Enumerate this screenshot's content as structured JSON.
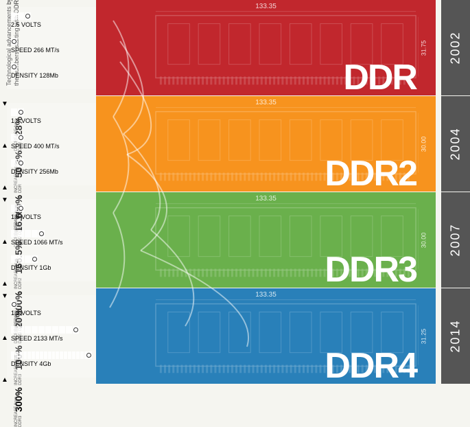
{
  "title": "Technological advancements by the numbers, starting with DDR",
  "generations": [
    {
      "id": "ddr",
      "label": "DDR",
      "year": "2002",
      "color": "#c1272d",
      "width_mm": "133.35",
      "height_mm": "31.75",
      "volts": {
        "segments": 3,
        "label": "2.5 VOLTS"
      },
      "speed": {
        "segments": 1,
        "label": "SPEED 266 MT/s"
      },
      "density": {
        "segments": 1,
        "label": "DENSITY 128Mb"
      },
      "changes": null
    },
    {
      "id": "ddr2",
      "label": "DDR2",
      "year": "2004",
      "color": "#f7931e",
      "width_mm": "133.35",
      "height_mm": "30.00",
      "volts": {
        "segments": 2,
        "label": "1.8 VOLTS"
      },
      "speed": {
        "segments": 2,
        "label": "SPEED 400 MT/s"
      },
      "density": {
        "segments": 2,
        "label": "DENSITY 256Mb"
      },
      "changes": [
        {
          "pct": "28%",
          "dir": "down",
          "desc": "DECREASE from DDR"
        },
        {
          "pct": "50.3%",
          "dir": "up",
          "desc": "INCREASE from DDR"
        },
        {
          "pct": "100%",
          "dir": "up",
          "desc": "INCREASE from DDR"
        }
      ]
    },
    {
      "id": "ddr3",
      "label": "DDR3",
      "year": "2007",
      "color": "#6ab04c",
      "width_mm": "133.35",
      "height_mm": "30.00",
      "volts": {
        "segments": 2,
        "label": "1.5 VOLTS"
      },
      "speed": {
        "segments": 5,
        "label": "SPEED 1066 MT/s"
      },
      "density": {
        "segments": 4,
        "label": "DENSITY 1Gb"
      },
      "changes": [
        {
          "pct": "16.6%",
          "dir": "down",
          "desc": "DECREASE from DDR2"
        },
        {
          "pct": "166.5%",
          "dir": "up",
          "desc": "INCREASE from DDR2"
        },
        {
          "pct": "300%",
          "dir": "up",
          "desc": "INCREASE from DDR2"
        }
      ]
    },
    {
      "id": "ddr4",
      "label": "DDR4",
      "year": "2014",
      "color": "#2980b9",
      "width_mm": "133.35",
      "height_mm": "31.25",
      "volts": {
        "segments": 1,
        "label": "1.2 VOLTS"
      },
      "speed": {
        "segments": 10,
        "label": "SPEED 2133 MT/s"
      },
      "density": {
        "segments": 20,
        "label": "DENSITY 4Gb"
      },
      "changes": [
        {
          "pct": "20%",
          "dir": "down",
          "desc": "DECREASE from DDR3"
        },
        {
          "pct": "100%",
          "dir": "up",
          "desc": "INCREASE from DDR3"
        },
        {
          "pct": "300%",
          "dir": "up",
          "desc": "INCREASE from DDR3"
        }
      ]
    }
  ],
  "style": {
    "year_bg": "#555555",
    "year_text": "#ffffff",
    "curve_color": "rgba(255,255,255,0.55)",
    "font": "Arial"
  }
}
